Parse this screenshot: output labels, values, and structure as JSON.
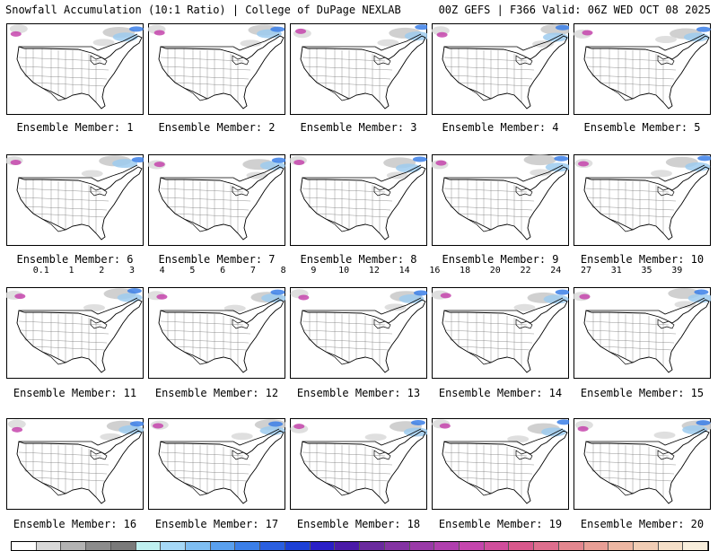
{
  "header": {
    "title": "Snowfall Accumulation (10:1 Ratio) | College of DuPage NEXLAB",
    "run_info": "00Z GEFS | F366 Valid: 06Z WED OCT 08 2025"
  },
  "panels": [
    {
      "member": "Ensemble Member: 1"
    },
    {
      "member": "Ensemble Member: 2"
    },
    {
      "member": "Ensemble Member: 3"
    },
    {
      "member": "Ensemble Member: 4"
    },
    {
      "member": "Ensemble Member: 5"
    },
    {
      "member": "Ensemble Member: 6"
    },
    {
      "member": "Ensemble Member: 7"
    },
    {
      "member": "Ensemble Member: 8"
    },
    {
      "member": "Ensemble Member: 9"
    },
    {
      "member": "Ensemble Member: 10"
    },
    {
      "member": "Ensemble Member: 11"
    },
    {
      "member": "Ensemble Member: 12"
    },
    {
      "member": "Ensemble Member: 13"
    },
    {
      "member": "Ensemble Member: 14"
    },
    {
      "member": "Ensemble Member: 15"
    },
    {
      "member": "Ensemble Member: 16"
    },
    {
      "member": "Ensemble Member: 17"
    },
    {
      "member": "Ensemble Member: 18"
    },
    {
      "member": "Ensemble Member: 19"
    },
    {
      "member": "Ensemble Member: 20"
    }
  ],
  "colorbar": {
    "labels": [
      "0.1",
      "1",
      "2",
      "3",
      "4",
      "5",
      "6",
      "7",
      "8",
      "9",
      "10",
      "12",
      "14",
      "16",
      "18",
      "20",
      "22",
      "24",
      "27",
      "31",
      "35",
      "39"
    ],
    "colors": [
      "#ffffff",
      "#d9d9d9",
      "#b3b3b3",
      "#8c8c8c",
      "#7a7a7a",
      "#bff0f0",
      "#a6d8f7",
      "#7fbef2",
      "#5aa0ee",
      "#3b7fe8",
      "#2a5fe0",
      "#1c40d6",
      "#2a1fc7",
      "#4a1aa8",
      "#6a2a9e",
      "#8433a3",
      "#9a3aa8",
      "#b03fae",
      "#c545ad",
      "#d04e9c",
      "#d8588c",
      "#de6f8e",
      "#e3878f",
      "#e89f96",
      "#edb7a3",
      "#f1cdb5",
      "#f5dfc8",
      "#f8eedc"
    ],
    "units": ""
  }
}
